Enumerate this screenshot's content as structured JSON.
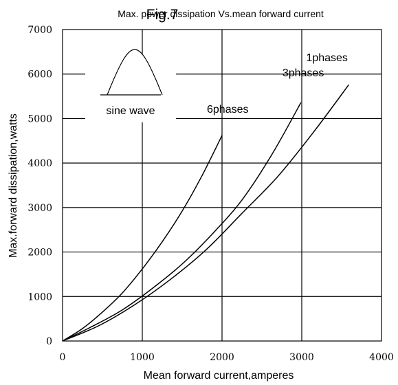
{
  "chart_data": {
    "type": "line",
    "figure_label": "Fig.7",
    "title": "Max. power dissipation  Vs.mean  forward current",
    "xlabel": "Mean forward  current,amperes",
    "ylabel": "Max.forward dissipation,watts",
    "xlim": [
      0,
      4000
    ],
    "ylim": [
      0,
      7000
    ],
    "x_ticks": [
      0,
      1000,
      2000,
      3000,
      4000
    ],
    "y_ticks": [
      0,
      1000,
      2000,
      3000,
      4000,
      5000,
      6000,
      7000
    ],
    "grid": true,
    "inset_label": "sine wave",
    "series": [
      {
        "name": "6phases",
        "x": [
          0,
          250,
          500,
          750,
          1000,
          1250,
          1500,
          1750,
          2000
        ],
        "y": [
          0,
          280,
          650,
          1080,
          1620,
          2230,
          2920,
          3720,
          4620
        ]
      },
      {
        "name": "3phases",
        "x": [
          0,
          375,
          750,
          1125,
          1500,
          1875,
          2250,
          2625,
          2990
        ],
        "y": [
          0,
          330,
          700,
          1180,
          1730,
          2400,
          3170,
          4190,
          5360
        ]
      },
      {
        "name": "1phases",
        "x": [
          0,
          450,
          900,
          1350,
          1800,
          2250,
          2700,
          3150,
          3590
        ],
        "y": [
          0,
          340,
          810,
          1380,
          2050,
          2870,
          3700,
          4700,
          5760
        ]
      }
    ]
  },
  "colors": {
    "line": "#000000",
    "background": "#ffffff"
  }
}
